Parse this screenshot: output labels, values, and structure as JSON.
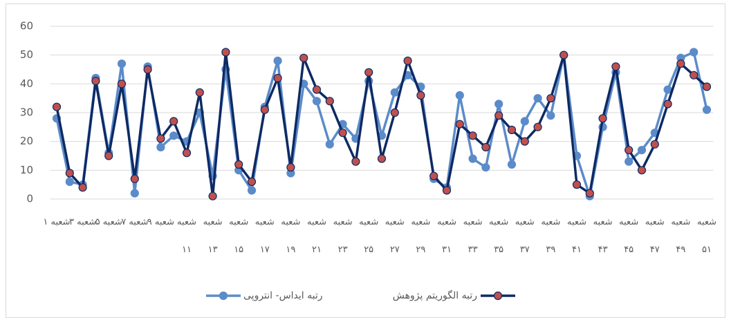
{
  "chart_data": {
    "type": "line",
    "categories": [
      "شعبه ۱",
      null,
      "شعبه ۳",
      null,
      "شعبه ۵",
      null,
      "شعبه ۷",
      null,
      "شعبه ۹",
      null,
      "شعبه ۱۱",
      null,
      "شعبه ۱۳",
      null,
      "شعبه ۱۵",
      null,
      "شعبه ۱۷",
      null,
      "شعبه ۱۹",
      null,
      "شعبه ۲۱",
      null,
      "شعبه ۲۳",
      null,
      "شعبه ۲۵",
      null,
      "شعبه ۲۷",
      null,
      "شعبه ۲۹",
      null,
      "شعبه ۳۱",
      null,
      "شعبه ۳۳",
      null,
      "شعبه ۳۵",
      null,
      "شعبه ۳۷",
      null,
      "شعبه ۳۹",
      null,
      "شعبه ۴۱",
      null,
      "شعبه ۴۳",
      null,
      "شعبه ۴۵",
      null,
      "شعبه ۴۷",
      null,
      "شعبه ۴۹",
      null,
      "شعبه ۵۱"
    ],
    "series": [
      {
        "name": "رتبه ایداس- انتروپی",
        "color": "#5b8bc9",
        "values": [
          28,
          6,
          5,
          42,
          16,
          47,
          2,
          46,
          18,
          22,
          20,
          30,
          8,
          45,
          10,
          3,
          32,
          48,
          9,
          40,
          34,
          19,
          26,
          21,
          41,
          22,
          37,
          43,
          39,
          7,
          4,
          36,
          14,
          11,
          33,
          12,
          27,
          35,
          29,
          50,
          15,
          1,
          25,
          44,
          13,
          17,
          23,
          38,
          49,
          51,
          31
        ]
      },
      {
        "name": "رتبه الگوریتم پژوهش",
        "color": "#0e2a64",
        "marker_color": "#c0504d",
        "values": [
          32,
          9,
          4,
          41,
          15,
          40,
          7,
          45,
          21,
          27,
          16,
          37,
          1,
          51,
          12,
          6,
          31,
          42,
          11,
          49,
          38,
          34,
          23,
          13,
          44,
          14,
          30,
          48,
          36,
          8,
          3,
          26,
          22,
          18,
          29,
          24,
          20,
          25,
          35,
          50,
          5,
          2,
          28,
          46,
          17,
          10,
          19,
          33,
          47,
          43,
          39
        ]
      }
    ],
    "ylim": [
      0,
      60
    ],
    "yticks": [
      0,
      10,
      20,
      30,
      40,
      50,
      60
    ],
    "grid": true,
    "legend": "bottom"
  }
}
